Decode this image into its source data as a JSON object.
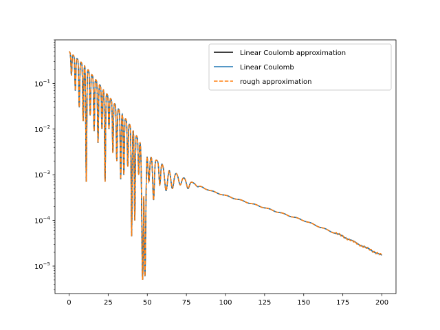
{
  "chart_data": {
    "type": "line",
    "title": "",
    "xlabel": "",
    "ylabel": "",
    "xlim": [
      -9,
      209
    ],
    "ylim": [
      2.5e-06,
      0.9
    ],
    "y_scale": "log",
    "grid": false,
    "legend_position": "top-right",
    "x_ticks": [
      {
        "value": 0,
        "label": "0"
      },
      {
        "value": 25,
        "label": "25"
      },
      {
        "value": 50,
        "label": "50"
      },
      {
        "value": 75,
        "label": "75"
      },
      {
        "value": 100,
        "label": "100"
      },
      {
        "value": 125,
        "label": "125"
      },
      {
        "value": 150,
        "label": "150"
      },
      {
        "value": 175,
        "label": "175"
      },
      {
        "value": 200,
        "label": "200"
      }
    ],
    "y_ticks": [
      {
        "value": 1e-05,
        "base": "10",
        "exp": "−5"
      },
      {
        "value": 0.0001,
        "base": "10",
        "exp": "−4"
      },
      {
        "value": 0.001,
        "base": "10",
        "exp": "−3"
      },
      {
        "value": 0.01,
        "base": "10",
        "exp": "−2"
      },
      {
        "value": 0.1,
        "base": "10",
        "exp": "−1"
      }
    ],
    "series": [
      {
        "name": "Linear Coulomb approximation",
        "color": "#000000",
        "dash": "solid"
      },
      {
        "name": "Linear Coulomb",
        "color": "#1f77b4",
        "dash": "solid"
      },
      {
        "name": "rough approximation",
        "color": "#ff7f0e",
        "dash": "dashed"
      }
    ],
    "x_range": [
      0,
      200
    ],
    "envelope": {
      "comment_free": true,
      "points": [
        [
          0,
          0.5
        ],
        [
          10,
          0.25
        ],
        [
          20,
          0.09
        ],
        [
          30,
          0.033
        ],
        [
          40,
          0.011
        ],
        [
          50,
          0.0028
        ],
        [
          60,
          0.0017
        ],
        [
          70,
          0.001
        ],
        [
          80,
          0.00065
        ],
        [
          90,
          0.00045
        ],
        [
          100,
          0.00035
        ],
        [
          125,
          0.00019
        ],
        [
          150,
          0.0001
        ],
        [
          175,
          4.5e-05
        ],
        [
          200,
          1.7e-05
        ]
      ]
    },
    "minima": [
      {
        "x": 1.5,
        "y": 0.15
      },
      {
        "x": 4,
        "y": 0.07
      },
      {
        "x": 6.5,
        "y": 0.03
      },
      {
        "x": 9,
        "y": 0.015
      },
      {
        "x": 11,
        "y": 0.0007
      },
      {
        "x": 13.5,
        "y": 0.02
      },
      {
        "x": 16,
        "y": 0.009
      },
      {
        "x": 18.5,
        "y": 0.005
      },
      {
        "x": 21,
        "y": 0.01
      },
      {
        "x": 23,
        "y": 0.0007
      },
      {
        "x": 25.5,
        "y": 0.01
      },
      {
        "x": 28,
        "y": 0.003
      },
      {
        "x": 30.5,
        "y": 0.002
      },
      {
        "x": 33,
        "y": 0.0008
      },
      {
        "x": 35,
        "y": 0.001
      },
      {
        "x": 37.5,
        "y": 0.0015
      },
      {
        "x": 40,
        "y": 4.5e-05
      },
      {
        "x": 42,
        "y": 0.0001
      },
      {
        "x": 44.5,
        "y": 0.001
      },
      {
        "x": 47,
        "y": 5e-06
      },
      {
        "x": 48.5,
        "y": 6e-06
      },
      {
        "x": 51,
        "y": 0.0007
      },
      {
        "x": 54,
        "y": 0.00028
      },
      {
        "x": 58,
        "y": 0.0006
      },
      {
        "x": 62,
        "y": 0.00045
      },
      {
        "x": 66,
        "y": 0.0005
      },
      {
        "x": 71,
        "y": 0.0006
      },
      {
        "x": 76,
        "y": 0.0005
      },
      {
        "x": 82,
        "y": 0.00055
      }
    ]
  }
}
